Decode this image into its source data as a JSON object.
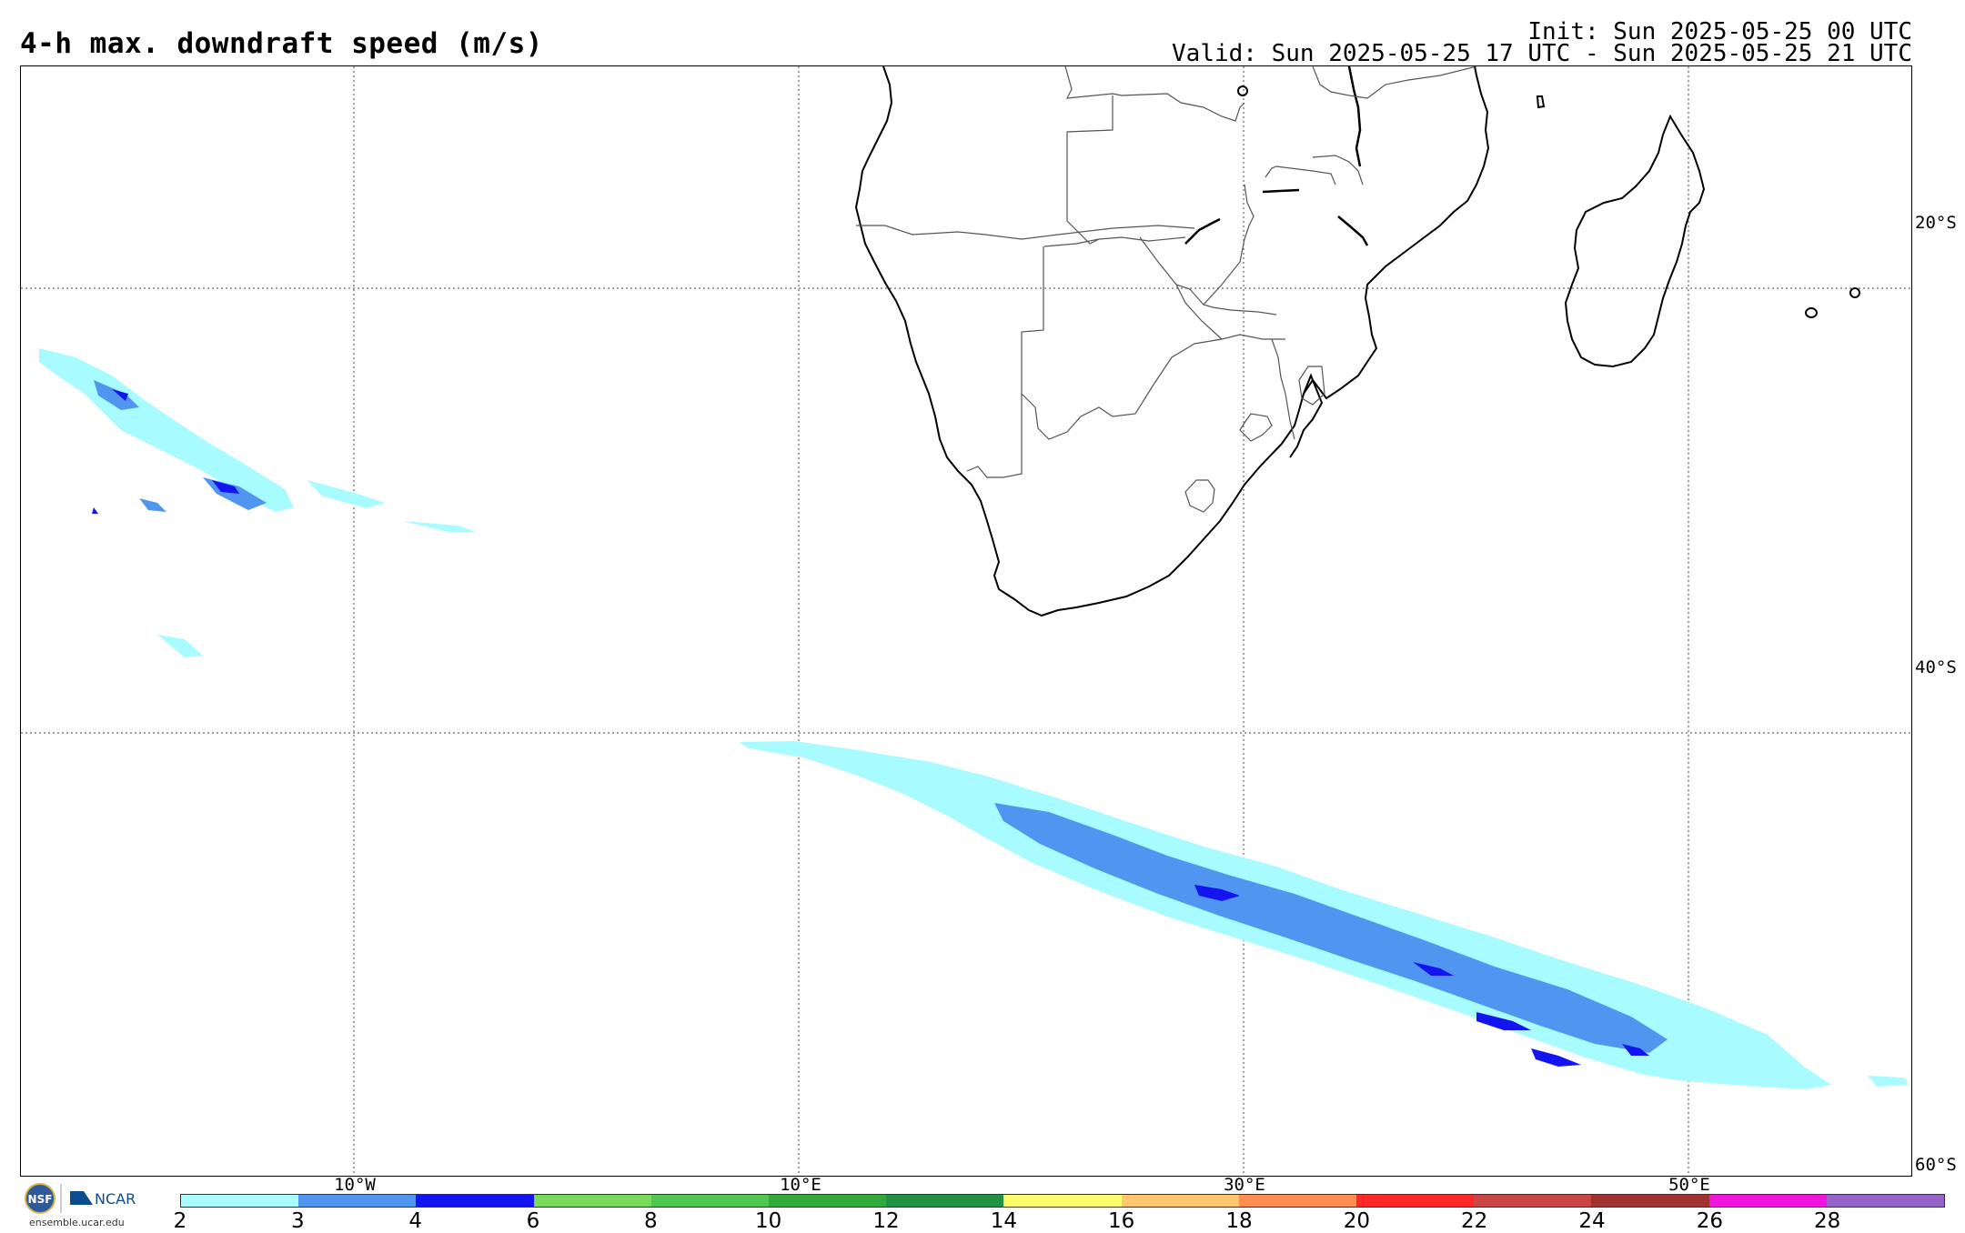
{
  "header": {
    "title": "4-h max. downdraft speed (m/s)",
    "init": "Init: Sun 2025-05-25 00 UTC",
    "valid": "Valid: Sun 2025-05-25 17 UTC - Sun 2025-05-25 21 UTC"
  },
  "map": {
    "lat_labels": [
      "20°S",
      "40°S",
      "60°S"
    ],
    "lon_labels": [
      "10°W",
      "10°E",
      "30°E",
      "50°E"
    ]
  },
  "logo": {
    "nsf": "NSF",
    "ncar": "NCAR",
    "site": "ensemble.ucar.edu"
  },
  "colorbar": {
    "labels": [
      "2",
      "3",
      "4",
      "6",
      "8",
      "10",
      "12",
      "14",
      "16",
      "18",
      "20",
      "22",
      "24",
      "26",
      "28"
    ],
    "colors": [
      "#a8fbff",
      "#5096f0",
      "#1414f0",
      "#78dc5a",
      "#50c850",
      "#32aa3c",
      "#219146",
      "#ffff6e",
      "#ffc86e",
      "#ff8c50",
      "#ff2828",
      "#c84646",
      "#a03232",
      "#f014dc",
      "#9664c8"
    ]
  }
}
